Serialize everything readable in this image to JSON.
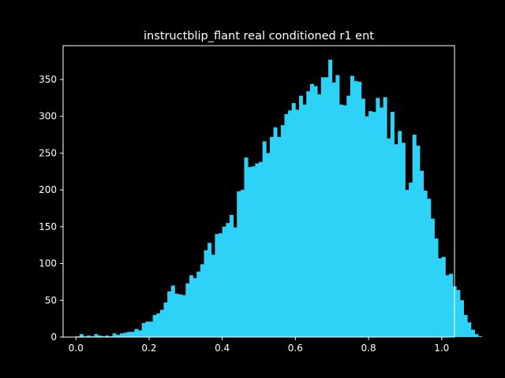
{
  "chart_data": {
    "type": "bar",
    "subtype": "histogram",
    "title": "instructblip_flant real conditioned r1 ent",
    "xlabel": "",
    "ylabel": "",
    "xlim": [
      -0.035,
      1.035
    ],
    "ylim": [
      0,
      396
    ],
    "x_ticks": [
      "0.0",
      "0.2",
      "0.4",
      "0.6",
      "0.8",
      "1.0"
    ],
    "x_tick_values": [
      0.0,
      0.2,
      0.4,
      0.6,
      0.8,
      1.0
    ],
    "y_ticks": [
      "0",
      "50",
      "100",
      "150",
      "200",
      "250",
      "300",
      "350"
    ],
    "y_tick_values": [
      0,
      50,
      100,
      150,
      200,
      250,
      300,
      350
    ],
    "bin_start": 0.0,
    "bin_width": 0.01,
    "values": [
      1,
      4,
      1,
      2,
      1,
      4,
      2,
      1,
      2,
      1,
      5,
      3,
      5,
      6,
      7,
      7,
      11,
      9,
      19,
      21,
      21,
      30,
      32,
      37,
      47,
      62,
      70,
      59,
      58,
      57,
      73,
      84,
      80,
      89,
      99,
      118,
      128,
      112,
      140,
      141,
      150,
      155,
      166,
      149,
      198,
      200,
      244,
      231,
      232,
      236,
      238,
      266,
      250,
      272,
      285,
      272,
      288,
      303,
      308,
      318,
      309,
      328,
      316,
      334,
      344,
      341,
      330,
      353,
      353,
      377,
      346,
      356,
      316,
      315,
      328,
      355,
      348,
      347,
      324,
      300,
      307,
      306,
      325,
      312,
      326,
      270,
      306,
      262,
      280,
      264,
      200,
      210,
      275,
      260,
      226,
      199,
      188,
      161,
      134,
      107,
      109,
      84,
      86,
      69,
      64,
      50,
      30,
      20,
      10,
      4,
      1
    ],
    "bar_color": "#2ed2f7",
    "background": "#000000",
    "foreground": "#ffffff",
    "grid": false,
    "legend": "none"
  }
}
